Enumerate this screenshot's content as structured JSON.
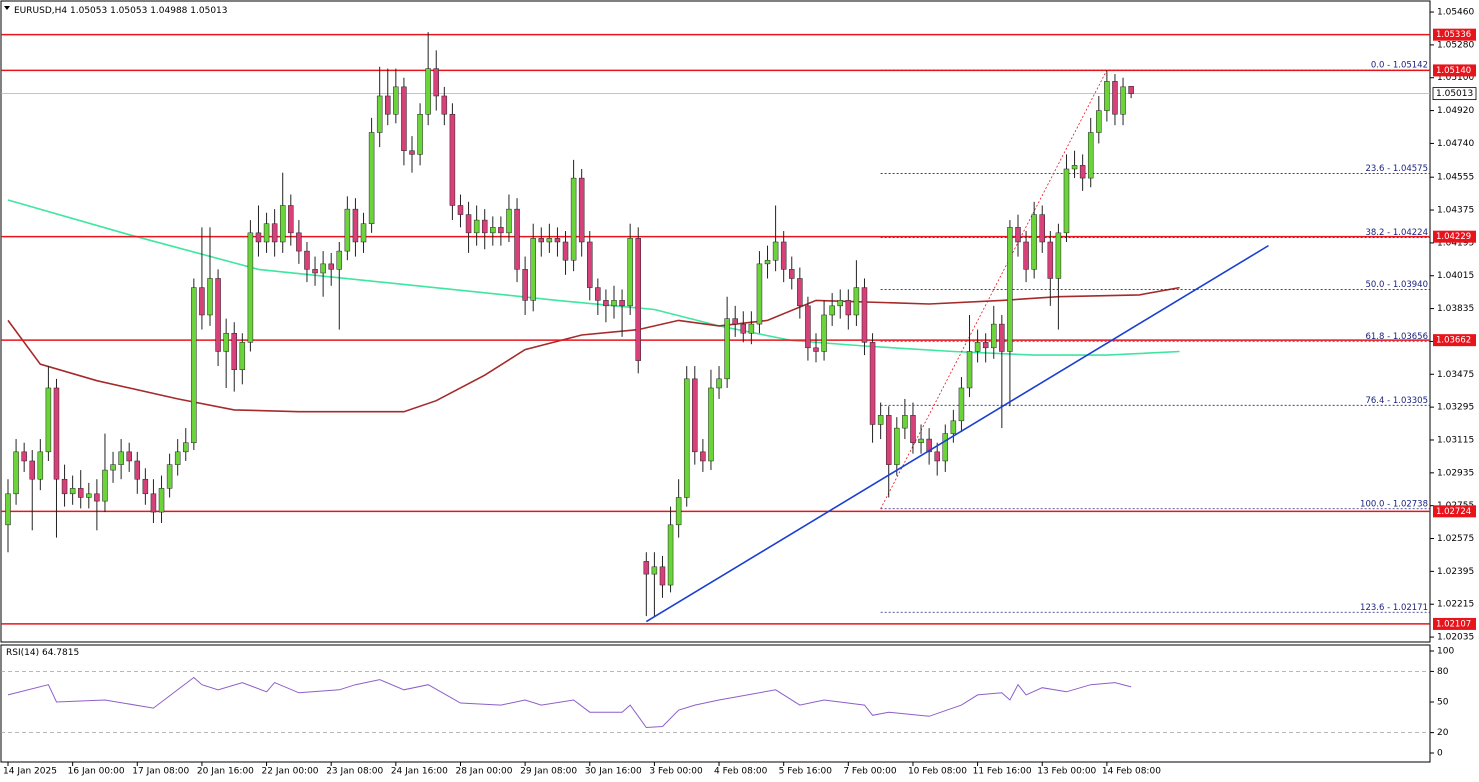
{
  "chart_data": {
    "type": "candlestick",
    "symbol": "EURUSD,H4",
    "header_ohlc": [
      1.05053,
      1.05053,
      1.04988,
      1.05013
    ],
    "colors": {
      "up": "#6bd43a",
      "down": "#d6417a",
      "outline": "#222222"
    },
    "ylim": [
      1.02008,
      1.05515
    ],
    "yticks": [
      {
        "value": 1.0546,
        "label": "1.05460"
      },
      {
        "value": 1.0528,
        "label": "1.05280"
      },
      {
        "value": 1.051,
        "label": "1.05100"
      },
      {
        "value": 1.0492,
        "label": "1.04920"
      },
      {
        "value": 1.0474,
        "label": "1.04740"
      },
      1.04555,
      1.04375,
      1.04195,
      1.04015,
      1.03835,
      1.03655,
      1.03475,
      1.03295,
      1.03115,
      1.02935,
      1.02755,
      1.02575,
      1.02395,
      1.02215,
      1.02035
    ],
    "xticks": [
      {
        "value": 0,
        "label": "14 Jan 2025"
      },
      {
        "value": 8,
        "label": "16 Jan 00:00"
      },
      {
        "value": 16,
        "label": "17 Jan 08:00"
      },
      {
        "value": 24,
        "label": "20 Jan 16:00"
      },
      {
        "value": 32,
        "label": "22 Jan 00:00"
      },
      {
        "value": 40,
        "label": "23 Jan 08:00"
      },
      {
        "value": 48,
        "label": "24 Jan 16:00"
      },
      {
        "value": 56,
        "label": "28 Jan 00:00"
      },
      {
        "value": 64,
        "label": "29 Jan 08:00"
      },
      {
        "value": 72,
        "label": "30 Jan 16:00"
      },
      {
        "value": 80,
        "label": "3 Feb 00:00"
      },
      {
        "value": 88,
        "label": "4 Feb 08:00"
      },
      {
        "value": 96,
        "label": "5 Feb 16:00"
      },
      {
        "value": 104,
        "label": "7 Feb 00:00"
      },
      {
        "value": 112,
        "label": "10 Feb 08:00"
      },
      {
        "value": 120,
        "label": "11 Feb 16:00"
      },
      {
        "value": 128,
        "label": "13 Feb 00:00"
      },
      {
        "value": 136,
        "label": "14 Feb 08:00"
      }
    ],
    "ohlc": [
      [
        1.0265,
        1.029,
        1.025,
        1.0282
      ],
      [
        1.0282,
        1.0312,
        1.0276,
        1.0305
      ],
      [
        1.0305,
        1.031,
        1.0294,
        1.03
      ],
      [
        1.03,
        1.0306,
        1.0262,
        1.029
      ],
      [
        1.029,
        1.0312,
        1.0284,
        1.0305
      ],
      [
        1.0305,
        1.0352,
        1.03,
        1.034
      ],
      [
        1.034,
        1.0345,
        1.0258,
        1.029
      ],
      [
        1.029,
        1.0298,
        1.0275,
        1.0282
      ],
      [
        1.0282,
        1.0292,
        1.0276,
        1.0285
      ],
      [
        1.0285,
        1.0295,
        1.0274,
        1.028
      ],
      [
        1.028,
        1.0288,
        1.0274,
        1.0282
      ],
      [
        1.0282,
        1.029,
        1.0262,
        1.0278
      ],
      [
        1.0278,
        1.0315,
        1.0272,
        1.0295
      ],
      [
        1.0295,
        1.0305,
        1.0288,
        1.0298
      ],
      [
        1.0298,
        1.0312,
        1.029,
        1.0305
      ],
      [
        1.0305,
        1.031,
        1.0294,
        1.03
      ],
      [
        1.03,
        1.0305,
        1.0282,
        1.029
      ],
      [
        1.029,
        1.0296,
        1.0276,
        1.0282
      ],
      [
        1.0282,
        1.029,
        1.0266,
        1.0272
      ],
      [
        1.0272,
        1.0292,
        1.0266,
        1.0285
      ],
      [
        1.0285,
        1.0304,
        1.028,
        1.0298
      ],
      [
        1.0298,
        1.0312,
        1.0292,
        1.0305
      ],
      [
        1.0305,
        1.0318,
        1.03,
        1.031
      ],
      [
        1.031,
        1.04,
        1.0306,
        1.0395
      ],
      [
        1.0395,
        1.0428,
        1.0372,
        1.038
      ],
      [
        1.038,
        1.0428,
        1.0374,
        1.04
      ],
      [
        1.04,
        1.0405,
        1.0352,
        1.036
      ],
      [
        1.036,
        1.0378,
        1.034,
        1.037
      ],
      [
        1.037,
        1.0376,
        1.0338,
        1.035
      ],
      [
        1.035,
        1.037,
        1.0342,
        1.0365
      ],
      [
        1.0365,
        1.0432,
        1.036,
        1.0425
      ],
      [
        1.0425,
        1.044,
        1.0412,
        1.042
      ],
      [
        1.042,
        1.0436,
        1.0414,
        1.043
      ],
      [
        1.043,
        1.0438,
        1.0412,
        1.042
      ],
      [
        1.042,
        1.0458,
        1.0414,
        1.044
      ],
      [
        1.044,
        1.0446,
        1.0418,
        1.0425
      ],
      [
        1.0425,
        1.0432,
        1.0408,
        1.0415
      ],
      [
        1.0415,
        1.042,
        1.0398,
        1.0405
      ],
      [
        1.0405,
        1.0412,
        1.0396,
        1.0403
      ],
      [
        1.0403,
        1.0415,
        1.039,
        1.0408
      ],
      [
        1.0408,
        1.0414,
        1.0396,
        1.0405
      ],
      [
        1.0405,
        1.042,
        1.0372,
        1.0415
      ],
      [
        1.0415,
        1.0445,
        1.041,
        1.0438
      ],
      [
        1.0438,
        1.0444,
        1.0412,
        1.042
      ],
      [
        1.042,
        1.0436,
        1.0414,
        1.043
      ],
      [
        1.043,
        1.0488,
        1.0425,
        1.048
      ],
      [
        1.048,
        1.0516,
        1.0472,
        1.05
      ],
      [
        1.05,
        1.0515,
        1.0484,
        1.049
      ],
      [
        1.049,
        1.0515,
        1.0485,
        1.0505
      ],
      [
        1.0505,
        1.051,
        1.0462,
        1.047
      ],
      [
        1.047,
        1.0478,
        1.0458,
        1.0468
      ],
      [
        1.0468,
        1.0496,
        1.0462,
        1.049
      ],
      [
        1.049,
        1.0535,
        1.0484,
        1.0515
      ],
      [
        1.0515,
        1.0525,
        1.0492,
        1.05
      ],
      [
        1.05,
        1.0505,
        1.0484,
        1.049
      ],
      [
        1.049,
        1.0496,
        1.0432,
        1.044
      ],
      [
        1.044,
        1.0446,
        1.0428,
        1.0435
      ],
      [
        1.0435,
        1.0442,
        1.0414,
        1.0425
      ],
      [
        1.0425,
        1.044,
        1.0418,
        1.0432
      ],
      [
        1.0432,
        1.0438,
        1.0416,
        1.0425
      ],
      [
        1.0425,
        1.0434,
        1.0418,
        1.0428
      ],
      [
        1.0428,
        1.0434,
        1.0418,
        1.0425
      ],
      [
        1.0425,
        1.0446,
        1.042,
        1.0438
      ],
      [
        1.0438,
        1.0444,
        1.0398,
        1.0405
      ],
      [
        1.0405,
        1.0412,
        1.038,
        1.0388
      ],
      [
        1.0388,
        1.043,
        1.0382,
        1.0422
      ],
      [
        1.0422,
        1.0428,
        1.0412,
        1.042
      ],
      [
        1.042,
        1.043,
        1.0414,
        1.0422
      ],
      [
        1.0422,
        1.0428,
        1.0412,
        1.042
      ],
      [
        1.042,
        1.0426,
        1.0402,
        1.041
      ],
      [
        1.041,
        1.0465,
        1.0404,
        1.0455
      ],
      [
        1.0455,
        1.046,
        1.0412,
        1.042
      ],
      [
        1.042,
        1.0426,
        1.0388,
        1.0395
      ],
      [
        1.0395,
        1.04,
        1.038,
        1.0388
      ],
      [
        1.0388,
        1.0394,
        1.0376,
        1.0385
      ],
      [
        1.0385,
        1.0396,
        1.0378,
        1.0388
      ],
      [
        1.0388,
        1.0394,
        1.0368,
        1.0385
      ],
      [
        1.0385,
        1.043,
        1.038,
        1.0422
      ],
      [
        1.0422,
        1.0428,
        1.0348,
        1.0355
      ],
      [
        1.0245,
        1.025,
        1.0215,
        1.0238
      ],
      [
        1.0238,
        1.025,
        1.0215,
        1.0242
      ],
      [
        1.0242,
        1.0248,
        1.0225,
        1.0232
      ],
      [
        1.0232,
        1.0275,
        1.0228,
        1.0265
      ],
      [
        1.0265,
        1.029,
        1.0258,
        1.028
      ],
      [
        1.028,
        1.0352,
        1.0275,
        1.0345
      ],
      [
        1.0345,
        1.0352,
        1.0298,
        1.0305
      ],
      [
        1.0305,
        1.0312,
        1.0294,
        1.03
      ],
      [
        1.03,
        1.035,
        1.0295,
        1.034
      ],
      [
        1.034,
        1.0352,
        1.0334,
        1.0345
      ],
      [
        1.0345,
        1.039,
        1.034,
        1.0378
      ],
      [
        1.0378,
        1.0385,
        1.0368,
        1.0375
      ],
      [
        1.0375,
        1.0382,
        1.0365,
        1.037
      ],
      [
        1.037,
        1.0382,
        1.0364,
        1.0375
      ],
      [
        1.0375,
        1.0415,
        1.037,
        1.0408
      ],
      [
        1.0408,
        1.0418,
        1.04,
        1.041
      ],
      [
        1.041,
        1.044,
        1.0404,
        1.042
      ],
      [
        1.042,
        1.0426,
        1.0398,
        1.0405
      ],
      [
        1.0405,
        1.0412,
        1.0394,
        1.04
      ],
      [
        1.04,
        1.0406,
        1.0378,
        1.0385
      ],
      [
        1.0385,
        1.039,
        1.0355,
        1.0362
      ],
      [
        1.0362,
        1.037,
        1.0354,
        1.036
      ],
      [
        1.036,
        1.0388,
        1.0355,
        1.038
      ],
      [
        1.038,
        1.0392,
        1.0374,
        1.0385
      ],
      [
        1.0385,
        1.0394,
        1.0378,
        1.0388
      ],
      [
        1.0388,
        1.0394,
        1.0372,
        1.038
      ],
      [
        1.038,
        1.041,
        1.0374,
        1.0395
      ],
      [
        1.0395,
        1.04,
        1.0358,
        1.0365
      ],
      [
        1.0365,
        1.037,
        1.031,
        1.032
      ],
      [
        1.032,
        1.0332,
        1.0312,
        1.0325
      ],
      [
        1.0325,
        1.033,
        1.028,
        1.0298
      ],
      [
        1.0298,
        1.0324,
        1.0292,
        1.0318
      ],
      [
        1.0318,
        1.0334,
        1.0312,
        1.0325
      ],
      [
        1.0325,
        1.0332,
        1.0304,
        1.031
      ],
      [
        1.031,
        1.032,
        1.0304,
        1.0312
      ],
      [
        1.0312,
        1.0318,
        1.0298,
        1.0305
      ],
      [
        1.0305,
        1.031,
        1.0292,
        1.03
      ],
      [
        1.03,
        1.032,
        1.0294,
        1.0315
      ],
      [
        1.0315,
        1.0328,
        1.031,
        1.0322
      ],
      [
        1.0322,
        1.0346,
        1.0316,
        1.034
      ],
      [
        1.034,
        1.038,
        1.0335,
        1.036
      ],
      [
        1.036,
        1.0372,
        1.0354,
        1.0365
      ],
      [
        1.0365,
        1.037,
        1.0354,
        1.0362
      ],
      [
        1.0362,
        1.0385,
        1.0356,
        1.0375
      ],
      [
        1.0375,
        1.038,
        1.0318,
        1.036
      ],
      [
        1.036,
        1.0432,
        1.033,
        1.0428
      ],
      [
        1.0428,
        1.0435,
        1.0412,
        1.042
      ],
      [
        1.042,
        1.0426,
        1.0398,
        1.0405
      ],
      [
        1.0405,
        1.0442,
        1.04,
        1.0435
      ],
      [
        1.0435,
        1.044,
        1.0414,
        1.042
      ],
      [
        1.042,
        1.0426,
        1.0385,
        1.04
      ],
      [
        1.04,
        1.043,
        1.0372,
        1.0425
      ],
      [
        1.0425,
        1.0468,
        1.042,
        1.046
      ],
      [
        1.046,
        1.047,
        1.0455,
        1.0462
      ],
      [
        1.0462,
        1.0468,
        1.0448,
        1.0455
      ],
      [
        1.0455,
        1.0488,
        1.045,
        1.048
      ],
      [
        1.048,
        1.05,
        1.0474,
        1.0492
      ],
      [
        1.0492,
        1.0514,
        1.0486,
        1.0508
      ],
      [
        1.0508,
        1.0512,
        1.0484,
        1.049
      ],
      [
        1.049,
        1.051,
        1.0484,
        1.0505
      ],
      [
        1.05053,
        1.05053,
        1.04988,
        1.05013
      ]
    ],
    "series": [
      {
        "color": "#3ee6a0",
        "x": [
          0,
          15,
          31,
          55,
          68,
          80,
          88,
          97,
          106,
          117,
          127,
          136,
          145
        ],
        "values": [
          1.0443,
          1.0424,
          1.0405,
          1.0394,
          1.0388,
          1.0383,
          1.0374,
          1.0366,
          1.0363,
          1.036,
          1.0358,
          1.0358,
          1.036
        ]
      },
      {
        "color": "#a52a2a",
        "x": [
          0,
          4,
          11,
          21,
          28,
          36,
          49,
          53,
          59,
          64,
          71,
          78,
          83,
          88,
          94,
          100,
          114,
          123,
          130,
          140,
          145
        ],
        "values": [
          1.0377,
          1.0353,
          1.0344,
          1.0334,
          1.0328,
          1.0327,
          1.0327,
          1.0333,
          1.0347,
          1.0361,
          1.0369,
          1.0372,
          1.0377,
          1.0374,
          1.0377,
          1.0388,
          1.0386,
          1.0388,
          1.039,
          1.0391,
          1.0395
        ]
      }
    ],
    "levels": [
      1.05336,
      {
        "value": 1.0514,
        "label": "1.05140"
      },
      1.04229,
      1.03662,
      1.02724,
      1.02107
    ],
    "level_color": "#e8141c",
    "current_price": 1.05013,
    "trendline": {
      "color": "#1a3fd1",
      "x": [
        79,
        156
      ],
      "values": [
        1.0212,
        1.0418
      ]
    },
    "fibonacci": {
      "color": "#1a237e",
      "x": [
        108,
        136
      ],
      "diagonal": [
        1.02738,
        1.05142
      ],
      "levels": [
        {
          "value": 1.05142,
          "label": "0.0 - 1.05142"
        },
        {
          "value": 1.04575,
          "label": "23.6 - 1.04575"
        },
        {
          "value": 1.04224,
          "label": "38.2 - 1.04224"
        },
        {
          "value": 1.0394,
          "label": "50.0 - 1.03940"
        },
        {
          "value": 1.03656,
          "label": "61.8 - 1.03656"
        },
        {
          "value": 1.03305,
          "label": "76.4 - 1.03305"
        },
        {
          "value": 1.02738,
          "label": "100.0 - 1.02738"
        },
        {
          "value": 1.02171,
          "label": "123.6 - 1.02171"
        }
      ]
    },
    "rsi": {
      "name": "RSI(14)",
      "value": 64.7815,
      "color": "#8e5fc8",
      "ylim": [
        0,
        100
      ],
      "yticks": [
        100,
        80,
        50,
        20,
        0
      ],
      "levels": [
        80,
        20
      ],
      "x": [
        0,
        5,
        6,
        12,
        18,
        23,
        24,
        26,
        29,
        32,
        33,
        36,
        41,
        43,
        46,
        49,
        52,
        56,
        61,
        64,
        66,
        70,
        72,
        76,
        77,
        79,
        81,
        83,
        85,
        88,
        95,
        98,
        101,
        106,
        107,
        109,
        114,
        118,
        120,
        123,
        124,
        125,
        126,
        128,
        131,
        134,
        137,
        139
      ],
      "values": [
        57,
        67,
        50,
        52,
        44,
        74,
        67,
        62,
        69,
        60,
        69,
        59,
        62,
        67,
        72,
        62,
        67,
        49,
        47,
        52,
        47,
        52,
        40,
        40,
        47,
        25,
        26,
        42,
        47,
        52,
        62,
        47,
        52,
        47,
        37,
        40,
        36,
        47,
        57,
        59,
        52,
        67,
        57,
        64,
        60,
        67,
        69,
        64.7815
      ]
    }
  }
}
